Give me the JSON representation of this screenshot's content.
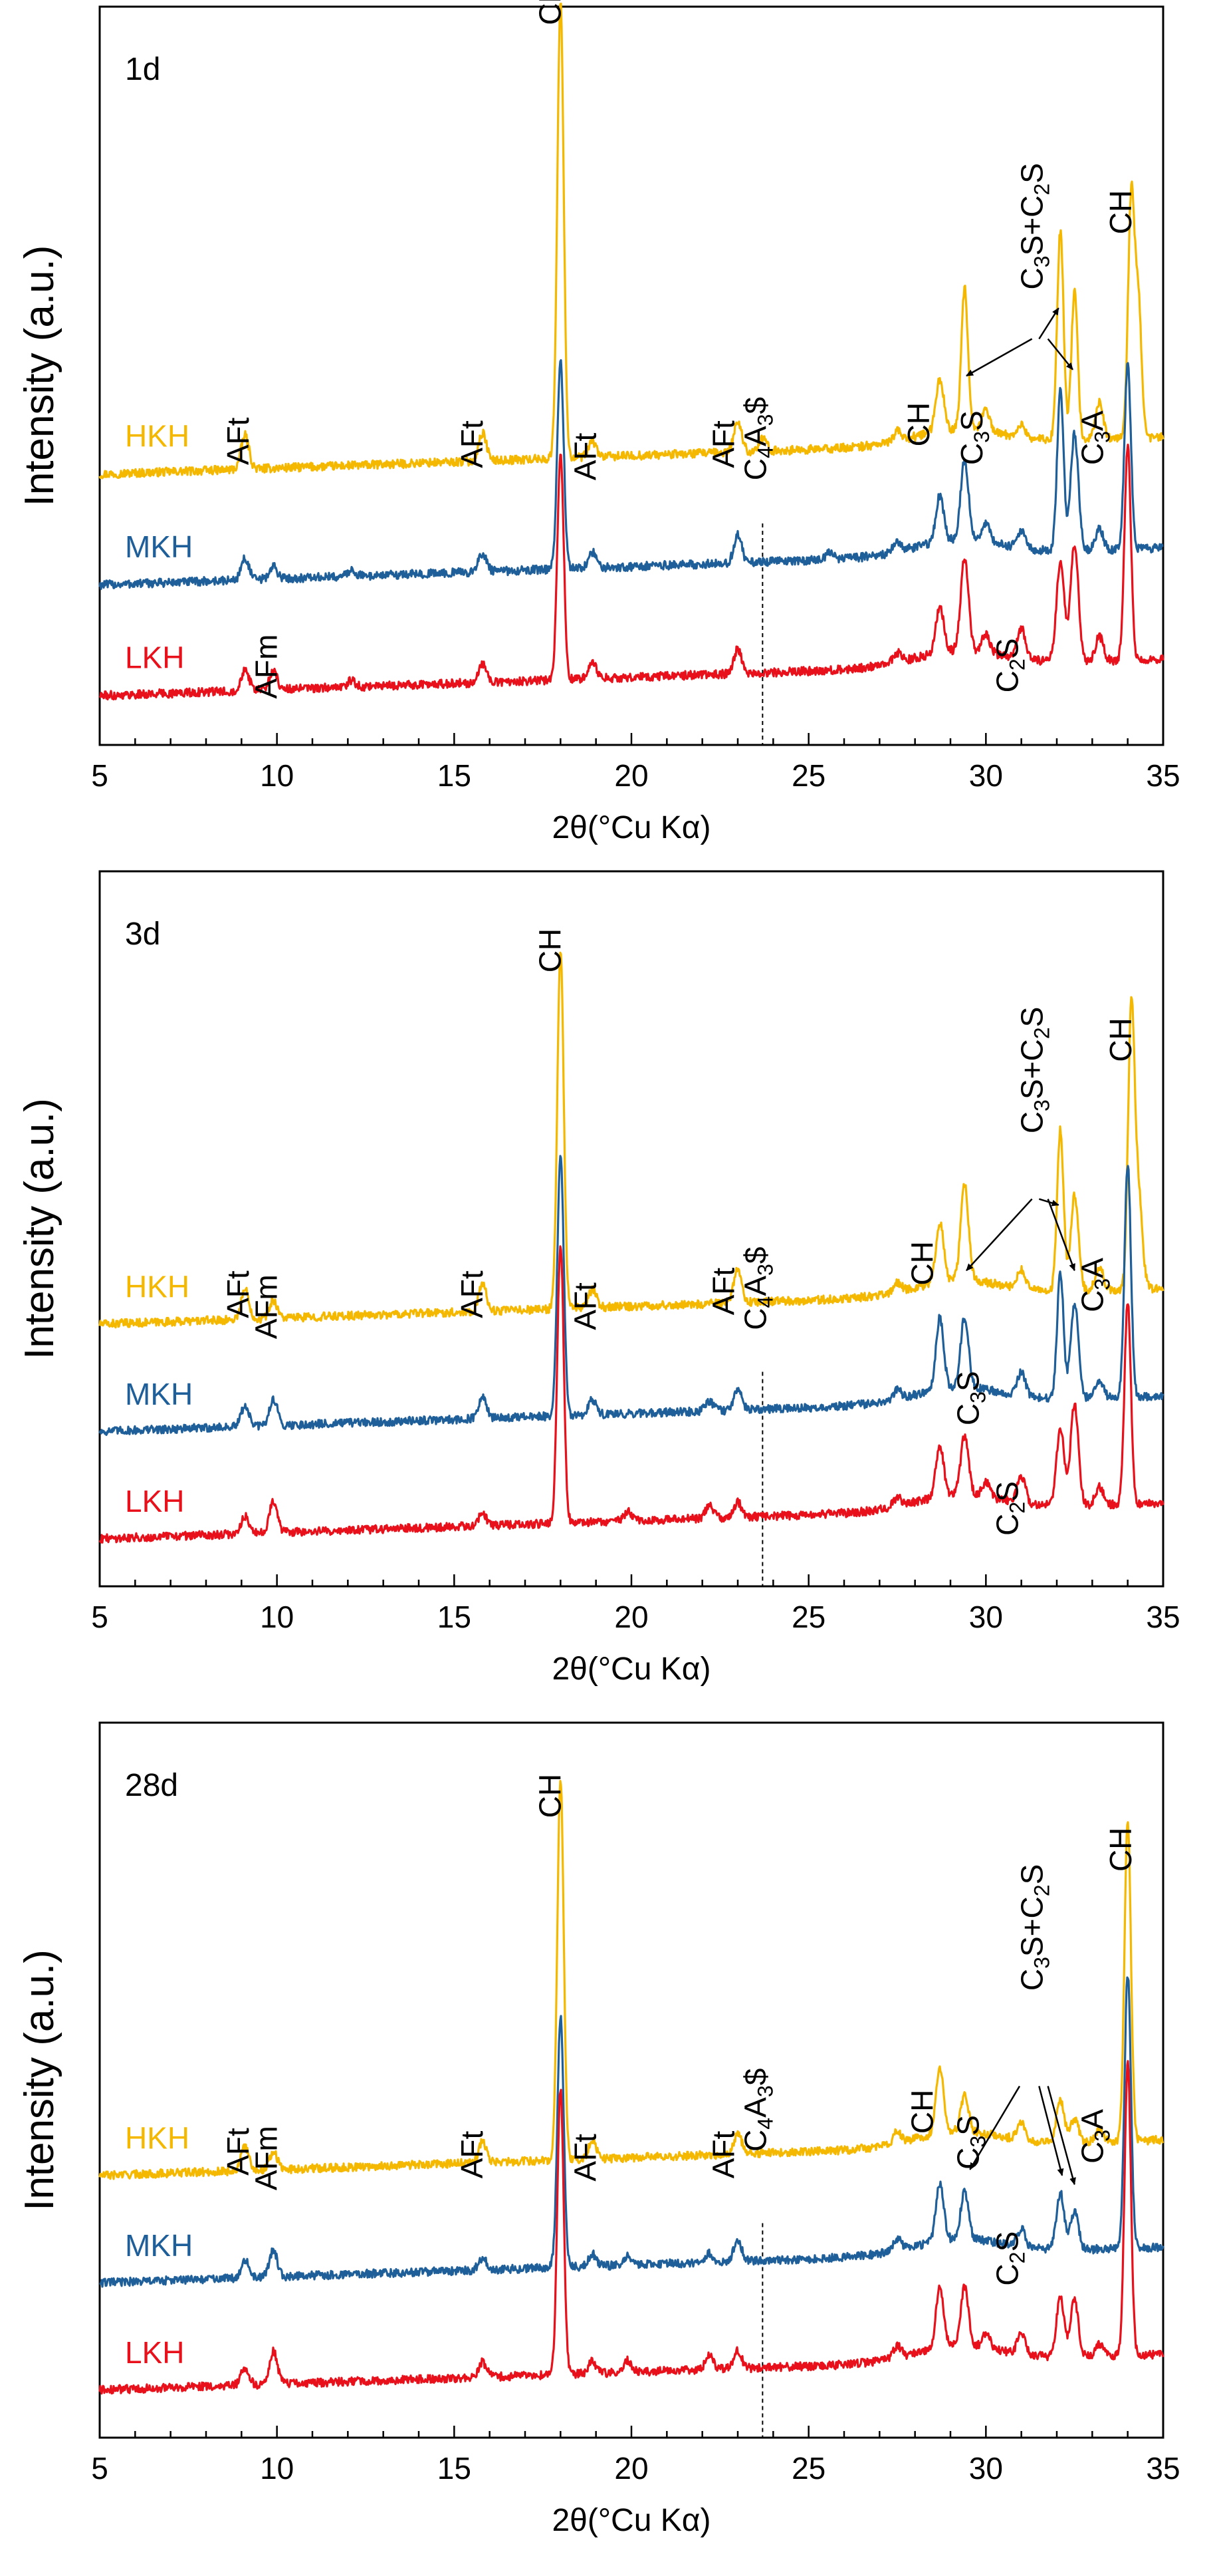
{
  "chart_data": [
    {
      "type": "line",
      "panel_label": "1d",
      "xlabel": "2θ(°Cu Kα)",
      "ylabel": "Intensity  (a.u.)",
      "xlim": [
        5,
        35
      ],
      "x_ticks": [
        5,
        10,
        15,
        20,
        25,
        30,
        35
      ],
      "x_tick_labels": [
        "5",
        "10",
        "15",
        "20",
        "25",
        "30",
        "35"
      ],
      "reference_line_x": 23.7,
      "series": [
        {
          "name": "HKH",
          "color": "#f5b800",
          "baseline": 3.6,
          "peaks": [
            [
              9.1,
              0.55
            ],
            [
              15.8,
              0.45
            ],
            [
              18.0,
              7.4
            ],
            [
              18.9,
              0.25
            ],
            [
              23.0,
              0.5
            ],
            [
              23.7,
              0.2
            ],
            [
              27.5,
              0.15
            ],
            [
              28.7,
              0.85
            ],
            [
              29.4,
              2.3
            ],
            [
              30.0,
              0.35
            ],
            [
              31.0,
              0.2
            ],
            [
              32.1,
              3.4
            ],
            [
              32.5,
              2.4
            ],
            [
              33.2,
              0.6
            ],
            [
              34.1,
              3.9
            ],
            [
              34.3,
              2.2
            ]
          ]
        },
        {
          "name": "MKH",
          "color": "#1f5f99",
          "baseline": 1.8,
          "peaks": [
            [
              9.1,
              0.35
            ],
            [
              9.9,
              0.2
            ],
            [
              12.1,
              0.1
            ],
            [
              15.8,
              0.3
            ],
            [
              18.0,
              3.4
            ],
            [
              18.9,
              0.25
            ],
            [
              23.0,
              0.45
            ],
            [
              25.6,
              0.1
            ],
            [
              27.5,
              0.15
            ],
            [
              28.7,
              0.75
            ],
            [
              29.4,
              1.3
            ],
            [
              30.0,
              0.3
            ],
            [
              31.0,
              0.3
            ],
            [
              32.1,
              2.6
            ],
            [
              32.5,
              1.9
            ],
            [
              33.2,
              0.35
            ],
            [
              34.0,
              3.0
            ]
          ]
        },
        {
          "name": "LKH",
          "color": "#e8101a",
          "baseline": 0.0,
          "peaks": [
            [
              9.1,
              0.35
            ],
            [
              9.9,
              0.3
            ],
            [
              12.1,
              0.1
            ],
            [
              15.8,
              0.3
            ],
            [
              18.0,
              3.7
            ],
            [
              18.9,
              0.25
            ],
            [
              23.0,
              0.4
            ],
            [
              27.5,
              0.15
            ],
            [
              28.7,
              0.75
            ],
            [
              29.4,
              1.5
            ],
            [
              30.0,
              0.3
            ],
            [
              31.0,
              0.5
            ],
            [
              32.1,
              1.6
            ],
            [
              32.5,
              1.9
            ],
            [
              33.2,
              0.4
            ],
            [
              34.0,
              3.5
            ]
          ]
        }
      ],
      "annotations": [
        {
          "text": "AFt",
          "x": 9.2,
          "y": 4.55,
          "rotate": true
        },
        {
          "text": "AFm",
          "x": 10.0,
          "y": 0.75,
          "rotate": true
        },
        {
          "text": "AFt",
          "x": 15.8,
          "y": 4.5,
          "rotate": true
        },
        {
          "text": "CH",
          "x": 18.0,
          "y": 11.7,
          "rotate": true
        },
        {
          "text": "AFt",
          "x": 19.0,
          "y": 4.3,
          "rotate": true
        },
        {
          "text": "AFt",
          "x": 22.9,
          "y": 4.5,
          "rotate": true
        },
        {
          "text": "C4A3$",
          "x": 23.8,
          "y": 4.3,
          "rotate": true
        },
        {
          "text": "CH",
          "x": 28.4,
          "y": 4.85,
          "rotate": true
        },
        {
          "text": "C3S",
          "x": 29.9,
          "y": 4.55,
          "rotate": true
        },
        {
          "text": "C2S",
          "x": 30.9,
          "y": 0.85,
          "rotate": true
        },
        {
          "text": "C3S+C2S",
          "x": 31.6,
          "y": 7.4,
          "rotate": true
        },
        {
          "text": "C3A",
          "x": 33.3,
          "y": 4.55,
          "rotate": true
        },
        {
          "text": "CH",
          "x": 34.1,
          "y": 8.3,
          "rotate": true
        }
      ],
      "arrows": [
        {
          "from": [
            31.3,
            6.6
          ],
          "to": [
            29.45,
            6.0
          ]
        },
        {
          "from": [
            31.5,
            6.6
          ],
          "to": [
            32.05,
            7.1
          ]
        },
        {
          "from": [
            31.75,
            6.6
          ],
          "to": [
            32.45,
            6.1
          ]
        }
      ]
    },
    {
      "type": "line",
      "panel_label": "3d",
      "xlabel": "2θ(°Cu Kα)",
      "ylabel": "Intensity  (a.u.)",
      "xlim": [
        5,
        35
      ],
      "x_ticks": [
        5,
        10,
        15,
        20,
        25,
        30,
        35
      ],
      "x_tick_labels": [
        "5",
        "10",
        "15",
        "20",
        "25",
        "30",
        "35"
      ],
      "reference_line_x": 23.7,
      "series": [
        {
          "name": "HKH",
          "color": "#f5b800",
          "baseline": 3.6,
          "peaks": [
            [
              9.1,
              0.5
            ],
            [
              9.9,
              0.3
            ],
            [
              15.8,
              0.45
            ],
            [
              18.0,
              6.0
            ],
            [
              18.9,
              0.3
            ],
            [
              23.0,
              0.55
            ],
            [
              27.5,
              0.15
            ],
            [
              28.7,
              1.0
            ],
            [
              29.4,
              1.6
            ],
            [
              31.0,
              0.3
            ],
            [
              32.1,
              2.7
            ],
            [
              32.5,
              1.6
            ],
            [
              33.2,
              0.4
            ],
            [
              34.1,
              4.6
            ],
            [
              34.3,
              1.6
            ]
          ]
        },
        {
          "name": "MKH",
          "color": "#1f5f99",
          "baseline": 1.8,
          "peaks": [
            [
              9.1,
              0.35
            ],
            [
              9.9,
              0.45
            ],
            [
              15.8,
              0.35
            ],
            [
              18.0,
              4.4
            ],
            [
              18.9,
              0.25
            ],
            [
              22.2,
              0.15
            ],
            [
              23.0,
              0.35
            ],
            [
              27.5,
              0.15
            ],
            [
              28.7,
              1.2
            ],
            [
              29.4,
              1.2
            ],
            [
              31.0,
              0.4
            ],
            [
              32.1,
              2.1
            ],
            [
              32.5,
              1.6
            ],
            [
              33.2,
              0.3
            ],
            [
              34.0,
              3.9
            ]
          ]
        },
        {
          "name": "LKH",
          "color": "#e8101a",
          "baseline": 0.0,
          "peaks": [
            [
              9.1,
              0.3
            ],
            [
              9.9,
              0.55
            ],
            [
              15.8,
              0.2
            ],
            [
              18.0,
              4.7
            ],
            [
              19.9,
              0.15
            ],
            [
              22.2,
              0.2
            ],
            [
              23.0,
              0.25
            ],
            [
              27.5,
              0.15
            ],
            [
              28.7,
              0.85
            ],
            [
              29.4,
              1.0
            ],
            [
              30.0,
              0.25
            ],
            [
              31.0,
              0.45
            ],
            [
              32.1,
              1.3
            ],
            [
              32.5,
              1.7
            ],
            [
              33.2,
              0.3
            ],
            [
              34.0,
              3.4
            ]
          ]
        }
      ],
      "annotations": [
        {
          "text": "AFt",
          "x": 9.2,
          "y": 4.5,
          "rotate": true
        },
        {
          "text": "AFm",
          "x": 10.0,
          "y": 4.15,
          "rotate": true
        },
        {
          "text": "AFt",
          "x": 15.8,
          "y": 4.5,
          "rotate": true
        },
        {
          "text": "CH",
          "x": 18.0,
          "y": 10.3,
          "rotate": true
        },
        {
          "text": "AFt",
          "x": 19.0,
          "y": 4.3,
          "rotate": true
        },
        {
          "text": "AFt",
          "x": 22.9,
          "y": 4.55,
          "rotate": true
        },
        {
          "text": "C4A3$",
          "x": 23.8,
          "y": 4.3,
          "rotate": true
        },
        {
          "text": "CH",
          "x": 28.5,
          "y": 5.05,
          "rotate": true
        },
        {
          "text": "C3S",
          "x": 29.8,
          "y": 2.7,
          "rotate": true
        },
        {
          "text": "C2S",
          "x": 30.9,
          "y": 0.85,
          "rotate": true
        },
        {
          "text": "C3S+C2S",
          "x": 31.6,
          "y": 7.6,
          "rotate": true
        },
        {
          "text": "C3A",
          "x": 33.3,
          "y": 4.6,
          "rotate": true
        },
        {
          "text": "CH",
          "x": 34.1,
          "y": 8.8,
          "rotate": true
        }
      ],
      "arrows": [
        {
          "from": [
            31.3,
            6.5
          ],
          "to": [
            29.45,
            5.3
          ]
        },
        {
          "from": [
            31.5,
            6.5
          ],
          "to": [
            32.05,
            6.4
          ]
        },
        {
          "from": [
            31.75,
            6.5
          ],
          "to": [
            32.5,
            5.3
          ]
        }
      ]
    },
    {
      "type": "line",
      "panel_label": "28d",
      "xlabel": "2θ(°Cu Kα)",
      "ylabel": "Intensity  (a.u.)",
      "xlim": [
        5,
        35
      ],
      "x_ticks": [
        5,
        10,
        15,
        20,
        25,
        30,
        35
      ],
      "x_tick_labels": [
        "5",
        "10",
        "15",
        "20",
        "25",
        "30",
        "35"
      ],
      "reference_line_x": 23.7,
      "series": [
        {
          "name": "HKH",
          "color": "#f5b800",
          "baseline": 3.6,
          "peaks": [
            [
              9.1,
              0.4
            ],
            [
              9.9,
              0.3
            ],
            [
              15.8,
              0.35
            ],
            [
              18.0,
              6.4
            ],
            [
              18.9,
              0.3
            ],
            [
              23.0,
              0.35
            ],
            [
              27.5,
              0.2
            ],
            [
              28.7,
              1.1
            ],
            [
              29.4,
              0.6
            ],
            [
              31.0,
              0.3
            ],
            [
              32.1,
              0.7
            ],
            [
              32.5,
              0.4
            ],
            [
              33.2,
              0.2
            ],
            [
              34.0,
              5.4
            ]
          ]
        },
        {
          "name": "MKH",
          "color": "#1f5f99",
          "baseline": 1.8,
          "peaks": [
            [
              9.1,
              0.3
            ],
            [
              9.9,
              0.45
            ],
            [
              15.8,
              0.2
            ],
            [
              18.0,
              4.2
            ],
            [
              18.9,
              0.2
            ],
            [
              19.9,
              0.15
            ],
            [
              22.2,
              0.15
            ],
            [
              23.0,
              0.35
            ],
            [
              27.5,
              0.2
            ],
            [
              28.7,
              0.95
            ],
            [
              29.4,
              0.8
            ],
            [
              31.0,
              0.3
            ],
            [
              32.1,
              0.95
            ],
            [
              32.5,
              0.65
            ],
            [
              34.0,
              4.6
            ]
          ]
        },
        {
          "name": "LKH",
          "color": "#e8101a",
          "baseline": 0.0,
          "peaks": [
            [
              9.1,
              0.3
            ],
            [
              9.9,
              0.55
            ],
            [
              15.8,
              0.25
            ],
            [
              18.0,
              4.8
            ],
            [
              18.9,
              0.2
            ],
            [
              19.9,
              0.2
            ],
            [
              22.2,
              0.25
            ],
            [
              23.0,
              0.3
            ],
            [
              27.5,
              0.2
            ],
            [
              28.7,
              1.0
            ],
            [
              29.4,
              1.0
            ],
            [
              30.0,
              0.25
            ],
            [
              31.0,
              0.35
            ],
            [
              32.1,
              1.0
            ],
            [
              32.5,
              0.95
            ],
            [
              33.2,
              0.2
            ],
            [
              34.0,
              4.9
            ]
          ]
        }
      ],
      "annotations": [
        {
          "text": "AFt",
          "x": 9.2,
          "y": 4.4,
          "rotate": true
        },
        {
          "text": "AFm",
          "x": 10.0,
          "y": 4.15,
          "rotate": true
        },
        {
          "text": "AFt",
          "x": 15.8,
          "y": 4.35,
          "rotate": true
        },
        {
          "text": "CH",
          "x": 18.0,
          "y": 10.4,
          "rotate": true
        },
        {
          "text": "AFt",
          "x": 19.0,
          "y": 4.3,
          "rotate": true
        },
        {
          "text": "AFt",
          "x": 22.9,
          "y": 4.35,
          "rotate": true
        },
        {
          "text": "C4A3$",
          "x": 23.8,
          "y": 4.8,
          "rotate": true
        },
        {
          "text": "CH",
          "x": 28.5,
          "y": 5.1,
          "rotate": true
        },
        {
          "text": "C3S",
          "x": 29.8,
          "y": 4.5,
          "rotate": true
        },
        {
          "text": "C2S",
          "x": 30.9,
          "y": 2.55,
          "rotate": true
        },
        {
          "text": "C3S+C2S",
          "x": 31.6,
          "y": 7.5,
          "rotate": true
        },
        {
          "text": "C3A",
          "x": 33.3,
          "y": 4.6,
          "rotate": true
        },
        {
          "text": "CH",
          "x": 34.1,
          "y": 9.5,
          "rotate": true
        }
      ],
      "arrows": [
        {
          "from": [
            30.95,
            5.9
          ],
          "to": [
            29.55,
            4.5
          ]
        },
        {
          "from": [
            31.5,
            5.9
          ],
          "to": [
            32.15,
            4.4
          ]
        },
        {
          "from": [
            31.75,
            5.9
          ],
          "to": [
            32.5,
            4.25
          ]
        }
      ]
    }
  ]
}
